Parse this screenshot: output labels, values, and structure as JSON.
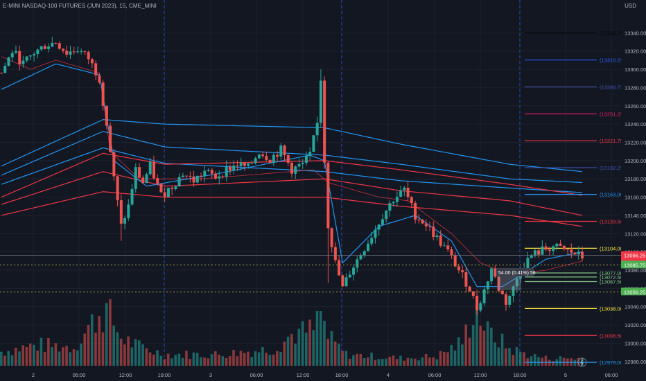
{
  "header": {
    "title": "E-MINI NASDAQ-100 FUTURES (JUN 2023), 15, CME_MINI",
    "currency": "USD"
  },
  "chart_data": {
    "type": "candlestick",
    "y_range": [
      12970,
      13360
    ],
    "y_ticks": [
      13340,
      13320,
      13300,
      13280,
      13260,
      13240,
      13220,
      13200,
      13180,
      13160,
      13140,
      13120,
      13100,
      13080,
      13060,
      13040,
      13020,
      13000,
      12980
    ],
    "x_ticks": [
      "2",
      "06:00",
      "12:00",
      "18:00",
      "3",
      "06:00",
      "12:00",
      "18:00",
      "4",
      "06:00",
      "12:00",
      "18:00",
      "5",
      "06:00"
    ],
    "session_dividers_at_ticks": [
      3,
      7,
      11
    ],
    "price_labels": [
      {
        "text": "13096.25",
        "value": 13096.25,
        "color": "#f23645"
      },
      {
        "text": "02:16",
        "value": 13091.5,
        "color": "#f23645"
      },
      {
        "text": "13085.75",
        "value": 13085.75,
        "color": "#4caf50"
      },
      {
        "text": "13056.25",
        "value": 13056.25,
        "color": "#4caf50"
      }
    ],
    "level_lines": [
      {
        "label": "(13339.75)",
        "value": 13339.75,
        "color": "#000000"
      },
      {
        "label": "(13310.25)",
        "value": 13310.25,
        "color": "#2962ff"
      },
      {
        "label": "(13280.75)",
        "value": 13280.75,
        "color": "#3f51b5"
      },
      {
        "label": "(13251.25)",
        "value": 13251.25,
        "color": "#e91e63"
      },
      {
        "label": "(13221.75)",
        "value": 13221.75,
        "color": "#f23645"
      },
      {
        "label": "(13192.25)",
        "value": 13192.25,
        "color": "#3f51b5"
      },
      {
        "label": "(13163.00)",
        "value": 13163.0,
        "color": "#2196f3"
      },
      {
        "label": "(13133.50)",
        "value": 13133.5,
        "color": "#f23645"
      },
      {
        "label": "(13104.00)",
        "value": 13104.0,
        "color": "#ffeb3b"
      },
      {
        "label": "(13077.00)",
        "value": 13077.0,
        "color": "#81c784"
      },
      {
        "label": "(13072.50)",
        "value": 13072.5,
        "color": "#81c784"
      },
      {
        "label": "(13067.50)",
        "value": 13067.5,
        "color": "#81c784"
      },
      {
        "label": "(13038.00)",
        "value": 13038.0,
        "color": "#ffeb3b"
      },
      {
        "label": "(13008.50)",
        "value": 13008.5,
        "color": "#f23645"
      },
      {
        "label": "(12979.00)",
        "value": 12979.0,
        "color": "#2196f3"
      }
    ],
    "measure_label": "54.00 (0.41%) 56",
    "colors": {
      "up": "#26a69a",
      "down": "#ef5350",
      "grid": "#1e222d",
      "text": "#b2b5be"
    },
    "close_anchors": [
      [
        0,
        13296
      ],
      [
        3,
        13320
      ],
      [
        6,
        13306
      ],
      [
        9,
        13318
      ],
      [
        12,
        13326
      ],
      [
        15,
        13330
      ],
      [
        18,
        13318
      ],
      [
        21,
        13322
      ],
      [
        24,
        13312
      ],
      [
        27,
        13290
      ],
      [
        29,
        13240
      ],
      [
        31,
        13180
      ],
      [
        33,
        13128
      ],
      [
        35,
        13150
      ],
      [
        37,
        13190
      ],
      [
        39,
        13176
      ],
      [
        41,
        13194
      ],
      [
        44,
        13162
      ],
      [
        47,
        13172
      ],
      [
        50,
        13186
      ],
      [
        53,
        13178
      ],
      [
        56,
        13188
      ],
      [
        59,
        13182
      ],
      [
        62,
        13190
      ],
      [
        65,
        13196
      ],
      [
        68,
        13192
      ],
      [
        71,
        13210
      ],
      [
        74,
        13202
      ],
      [
        77,
        13212
      ],
      [
        80,
        13190
      ],
      [
        83,
        13196
      ],
      [
        85,
        13206
      ],
      [
        87,
        13240
      ],
      [
        88,
        13290
      ],
      [
        89,
        13200
      ],
      [
        90,
        13130
      ],
      [
        92,
        13088
      ],
      [
        94,
        13060
      ],
      [
        96,
        13078
      ],
      [
        99,
        13098
      ],
      [
        102,
        13118
      ],
      [
        105,
        13140
      ],
      [
        108,
        13158
      ],
      [
        111,
        13168
      ],
      [
        114,
        13140
      ],
      [
        117,
        13130
      ],
      [
        120,
        13115
      ],
      [
        123,
        13100
      ],
      [
        126,
        13080
      ],
      [
        129,
        13060
      ],
      [
        131,
        13038
      ],
      [
        133,
        13058
      ],
      [
        135,
        13082
      ],
      [
        137,
        13060
      ],
      [
        139,
        13045
      ],
      [
        141,
        13060
      ],
      [
        143,
        13082
      ],
      [
        146,
        13096
      ],
      [
        149,
        13102
      ],
      [
        152,
        13106
      ],
      [
        155,
        13102
      ],
      [
        158,
        13098
      ],
      [
        160,
        13094
      ]
    ],
    "volume_peaks": [
      [
        0,
        0.15
      ],
      [
        10,
        0.22
      ],
      [
        20,
        0.2
      ],
      [
        27,
        0.55
      ],
      [
        29,
        0.58
      ],
      [
        31,
        0.45
      ],
      [
        33,
        0.3
      ],
      [
        38,
        0.2
      ],
      [
        45,
        0.12
      ],
      [
        60,
        0.12
      ],
      [
        75,
        0.18
      ],
      [
        80,
        0.33
      ],
      [
        86,
        0.38
      ],
      [
        88,
        0.56
      ],
      [
        90,
        0.3
      ],
      [
        95,
        0.12
      ],
      [
        110,
        0.08
      ],
      [
        120,
        0.1
      ],
      [
        127,
        0.25
      ],
      [
        129,
        0.45
      ],
      [
        130,
        0.62
      ],
      [
        132,
        0.52
      ],
      [
        134,
        0.35
      ],
      [
        137,
        0.28
      ],
      [
        140,
        0.18
      ],
      [
        145,
        0.12
      ],
      [
        150,
        0.08
      ],
      [
        160,
        0.08
      ]
    ],
    "blue_bands": [
      [
        [
          0,
          13174
        ],
        [
          28,
          13214
        ],
        [
          45,
          13197
        ],
        [
          89,
          13188
        ],
        [
          110,
          13178
        ],
        [
          140,
          13170
        ],
        [
          160,
          13165
        ]
      ],
      [
        [
          0,
          13184
        ],
        [
          28,
          13232
        ],
        [
          45,
          13215
        ],
        [
          89,
          13206
        ],
        [
          110,
          13196
        ],
        [
          140,
          13180
        ],
        [
          160,
          13176
        ]
      ],
      [
        [
          0,
          13194
        ],
        [
          28,
          13245
        ],
        [
          45,
          13240
        ],
        [
          89,
          13236
        ],
        [
          110,
          13218
        ],
        [
          140,
          13196
        ],
        [
          160,
          13188
        ]
      ]
    ],
    "red_bands": [
      [
        [
          0,
          13140
        ],
        [
          28,
          13166
        ],
        [
          45,
          13160
        ],
        [
          89,
          13160
        ],
        [
          110,
          13150
        ],
        [
          140,
          13140
        ],
        [
          160,
          13128
        ]
      ],
      [
        [
          0,
          13152
        ],
        [
          28,
          13188
        ],
        [
          45,
          13172
        ],
        [
          89,
          13180
        ],
        [
          110,
          13167
        ],
        [
          140,
          13156
        ],
        [
          160,
          13140
        ]
      ],
      [
        [
          0,
          13160
        ],
        [
          28,
          13208
        ],
        [
          45,
          13196
        ],
        [
          89,
          13200
        ],
        [
          110,
          13190
        ],
        [
          140,
          13174
        ],
        [
          160,
          13162
        ]
      ]
    ],
    "vwap": [
      [
        0,
        13278
      ],
      [
        15,
        13306
      ],
      [
        27,
        13294
      ],
      [
        31,
        13200
      ],
      [
        40,
        13172
      ],
      [
        60,
        13186
      ],
      [
        85,
        13206
      ],
      [
        89,
        13200
      ],
      [
        94,
        13088
      ],
      [
        104,
        13128
      ],
      [
        114,
        13140
      ],
      [
        124,
        13112
      ],
      [
        131,
        13062
      ],
      [
        138,
        13062
      ],
      [
        150,
        13092
      ],
      [
        160,
        13100
      ]
    ],
    "red_thin": [
      [
        0,
        13314
      ],
      [
        8,
        13300
      ],
      [
        15,
        13310
      ],
      [
        27,
        13296
      ],
      [
        30,
        13210
      ],
      [
        38,
        13180
      ],
      [
        55,
        13180
      ],
      [
        86,
        13190
      ],
      [
        90,
        13176
      ],
      [
        104,
        13160
      ],
      [
        112,
        13156
      ],
      [
        124,
        13120
      ],
      [
        132,
        13088
      ],
      [
        140,
        13075
      ],
      [
        150,
        13080
      ],
      [
        160,
        13090
      ]
    ]
  }
}
